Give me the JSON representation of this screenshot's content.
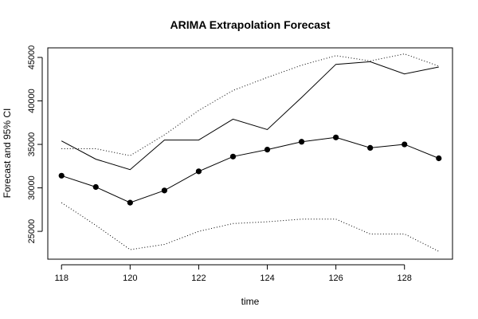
{
  "chart_data": {
    "type": "line",
    "title": "ARIMA Extrapolation Forecast",
    "xlabel": "time",
    "ylabel": "Forecast and 95% CI",
    "xlim": [
      117.6,
      129.4
    ],
    "ylim": [
      21800,
      46100
    ],
    "x_ticks": [
      118,
      120,
      122,
      124,
      126,
      128
    ],
    "y_ticks": [
      25000,
      30000,
      35000,
      40000,
      45000
    ],
    "x": [
      118,
      119,
      120,
      121,
      122,
      123,
      124,
      125,
      126,
      127,
      128,
      129
    ],
    "series": [
      {
        "role": "upper-ci",
        "style": "dotted",
        "values": [
          34500,
          34500,
          33700,
          36100,
          38900,
          41200,
          42700,
          44100,
          45200,
          44600,
          45400,
          44000
        ]
      },
      {
        "role": "actual",
        "style": "solid",
        "values": [
          35400,
          33300,
          32100,
          35500,
          35500,
          37900,
          36700,
          40400,
          44200,
          44500,
          43100,
          43900
        ]
      },
      {
        "role": "forecast",
        "style": "solid-with-points",
        "values": [
          31400,
          30100,
          28300,
          29700,
          31900,
          33600,
          34400,
          35300,
          35800,
          34600,
          35000,
          33400
        ]
      },
      {
        "role": "lower-ci",
        "style": "dotted",
        "values": [
          28300,
          25700,
          22900,
          23500,
          25000,
          25900,
          26100,
          26400,
          26400,
          24700,
          24700,
          22700
        ]
      }
    ],
    "grid": false,
    "legend": "none"
  }
}
